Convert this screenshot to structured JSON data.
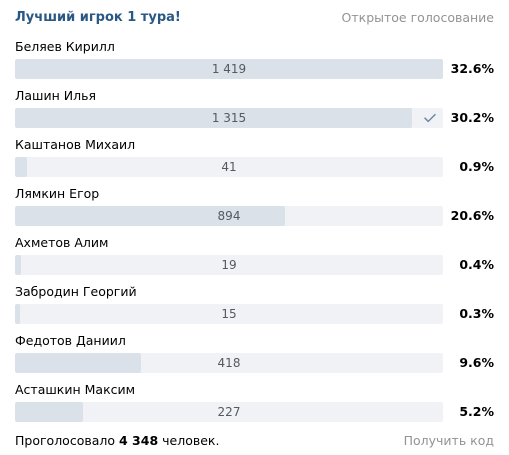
{
  "poll": {
    "title": "Лучший игрок 1 тура!",
    "type_label": "Открытое голосование",
    "colors": {
      "title": "#2a5885",
      "bar_track": "#f0f2f5",
      "bar_fill": "#dae1e8",
      "muted": "#939393"
    },
    "options": [
      {
        "name": "Беляев Кирилл",
        "votes": "1 419",
        "percent": "32.6%",
        "fill": 1.0,
        "voted": false
      },
      {
        "name": "Лашин Илья",
        "votes": "1 315",
        "percent": "30.2%",
        "fill": 0.927,
        "voted": true,
        "voted_icon": "checkmark-icon"
      },
      {
        "name": "Каштанов Михаил",
        "votes": "41",
        "percent": "0.9%",
        "fill": 0.029,
        "voted": false
      },
      {
        "name": "Лямкин Егор",
        "votes": "894",
        "percent": "20.6%",
        "fill": 0.63,
        "voted": false
      },
      {
        "name": "Ахметов Алим",
        "votes": "19",
        "percent": "0.4%",
        "fill": 0.013,
        "voted": false
      },
      {
        "name": "Забродин Георгий",
        "votes": "15",
        "percent": "0.3%",
        "fill": 0.011,
        "voted": false
      },
      {
        "name": "Федотов Даниил",
        "votes": "418",
        "percent": "9.6%",
        "fill": 0.295,
        "voted": false
      },
      {
        "name": "Асташкин Максим",
        "votes": "227",
        "percent": "5.2%",
        "fill": 0.16,
        "voted": false
      }
    ],
    "footer": {
      "voted_prefix": "Проголосовало ",
      "voted_count": "4 348",
      "voted_suffix": " человек.",
      "get_code_label": "Получить код"
    }
  }
}
